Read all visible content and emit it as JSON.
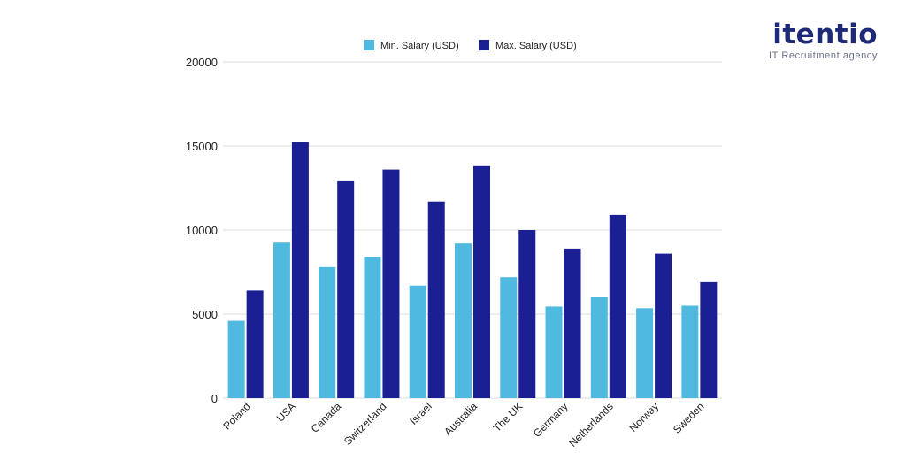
{
  "brand": {
    "name": "itentio",
    "tagline": "IT Recruitment agency"
  },
  "chart_data": {
    "type": "bar",
    "categories": [
      "Poland",
      "USA",
      "Canada",
      "Switzerland",
      "Israel",
      "Australia",
      "The UK",
      "Germany",
      "Netherlands",
      "Norway",
      "Sweden"
    ],
    "series": [
      {
        "name": "Min. Salary (USD)",
        "color": "#4fb9e0",
        "values": [
          4600,
          9250,
          7800,
          8400,
          6700,
          9200,
          7200,
          5450,
          6000,
          5350,
          5500
        ]
      },
      {
        "name": "Max. Salary (USD)",
        "color": "#1b1f94",
        "values": [
          6400,
          15250,
          12900,
          13600,
          11700,
          13800,
          10000,
          8900,
          10900,
          8600,
          6900
        ]
      }
    ],
    "yticks": [
      0,
      5000,
      10000,
      15000,
      20000
    ],
    "ylim": [
      0,
      20000
    ],
    "grid": true,
    "legend": "top-center",
    "title": "",
    "xlabel": "",
    "ylabel": ""
  }
}
